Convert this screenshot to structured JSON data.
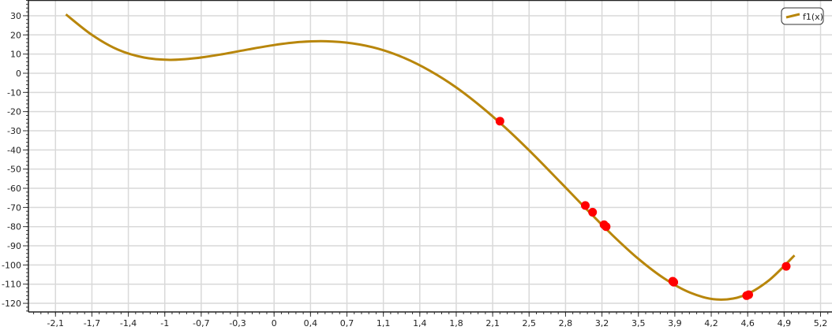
{
  "chart_data": {
    "type": "line",
    "title": "",
    "xlabel": "",
    "ylabel": "",
    "xlim": [
      -2.36,
      5.36
    ],
    "ylim": [
      -124.5,
      38.2
    ],
    "grid": true,
    "legend_position": "top-right",
    "x_ticks": [
      -2.1,
      -1.75,
      -1.4,
      -1.05,
      -0.7,
      -0.35,
      0,
      0.35,
      0.7,
      1.05,
      1.4,
      1.75,
      2.1,
      2.45,
      2.8,
      3.15,
      3.5,
      3.85,
      4.2,
      4.55,
      4.9,
      5.25
    ],
    "x_tick_labels": [
      "-2,1",
      "-1,7",
      "-1,4",
      "-1",
      "-0,7",
      "-0,3",
      "0",
      "0,4",
      "0,7",
      "1,1",
      "1,4",
      "1,8",
      "2,1",
      "2,5",
      "2,8",
      "3,2",
      "3,5",
      "3,9",
      "4,2",
      "4,6",
      "4,9",
      "5,2"
    ],
    "y_ticks": [
      30,
      20,
      10,
      0,
      -10,
      -20,
      -30,
      -40,
      -50,
      -60,
      -70,
      -80,
      -90,
      -100,
      -110,
      -120
    ],
    "y_tick_labels": [
      "30",
      "20",
      "10",
      "0",
      "-10",
      "-20",
      "-30",
      "-40",
      "-50",
      "-60",
      "-70",
      "-80",
      "-90",
      "-100",
      "-110",
      "-120"
    ],
    "series": [
      {
        "name": "f1(x)",
        "color": "#b8860b",
        "x": [
          -2,
          -1.75,
          -1.5,
          -1.25,
          -1,
          -0.75,
          -0.5,
          -0.25,
          0,
          0.25,
          0.5,
          0.75,
          1,
          1.25,
          1.5,
          1.75,
          2,
          2.25,
          2.5,
          2.75,
          3,
          3.25,
          3.5,
          3.75,
          4,
          4.25,
          4.5,
          4.75,
          5
        ],
        "y": [
          30.7,
          20.0,
          12.3,
          8.2,
          7.0,
          7.9,
          9.9,
          12.4,
          14.7,
          16.3,
          16.7,
          15.6,
          12.8,
          8.0,
          1.2,
          -7.4,
          -17.9,
          -29.8,
          -42.9,
          -56.8,
          -70.8,
          -84.4,
          -96.8,
          -107.1,
          -114.5,
          -118.0,
          -116.2,
          -108.2,
          -95.0
        ]
      }
    ],
    "points": {
      "color": "#ff0000",
      "x": [
        2.17,
        2.99,
        3.06,
        3.17,
        3.19,
        3.83,
        3.84,
        4.54,
        4.56,
        4.92
      ],
      "y": [
        -25,
        -69,
        -72.5,
        -79,
        -80,
        -108.5,
        -109,
        -116,
        -115.5,
        -100.7
      ]
    }
  }
}
